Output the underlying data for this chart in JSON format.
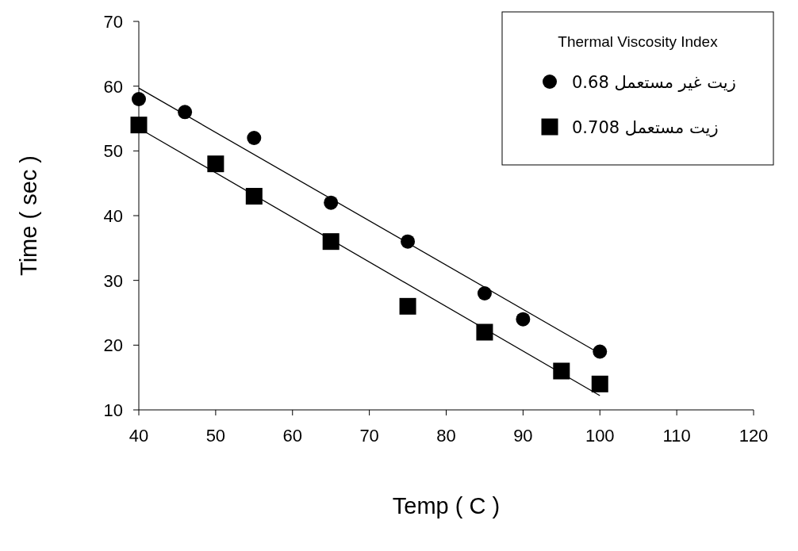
{
  "chart_data": {
    "type": "scatter",
    "xlabel": "Temp ( C )",
    "ylabel": "Time ( sec )",
    "legend_title": "Thermal Viscosity Index",
    "xlim": [
      40,
      120
    ],
    "ylim": [
      10,
      70
    ],
    "xticks": [
      40,
      50,
      60,
      70,
      80,
      90,
      100,
      110,
      120
    ],
    "yticks": [
      10,
      20,
      30,
      40,
      50,
      60,
      70
    ],
    "legend": "top right",
    "series": [
      {
        "name": "زيت غير مستعمل 0.68",
        "marker": "circle",
        "color": "#000000",
        "x": [
          40,
          46,
          55,
          65,
          75,
          85,
          90,
          100
        ],
        "values": [
          58,
          56,
          52,
          42,
          36,
          28,
          24,
          19
        ]
      },
      {
        "name": "زيت مستعمل 0.708",
        "marker": "square",
        "color": "#000000",
        "x": [
          40,
          50,
          55,
          65,
          75,
          85,
          95,
          100
        ],
        "values": [
          54,
          48,
          43,
          36,
          26,
          22,
          16,
          14
        ]
      },
      {
        "type": "line",
        "color": "#000000",
        "x": [
          40,
          100
        ],
        "values": [
          59.7,
          18.7
        ]
      },
      {
        "type": "line",
        "color": "#000000",
        "x": [
          40,
          100
        ],
        "values": [
          53.5,
          12.2
        ]
      }
    ]
  }
}
